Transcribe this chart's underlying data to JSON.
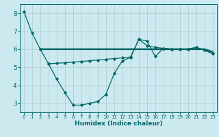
{
  "xlabel": "Humidex (Indice chaleur)",
  "bg_color": "#cce9f0",
  "grid_color": "#aacccc",
  "line_color": "#006666",
  "xlim": [
    -0.5,
    23.5
  ],
  "ylim": [
    2.5,
    8.5
  ],
  "yticks": [
    3,
    4,
    5,
    6,
    7,
    8
  ],
  "xticks": [
    0,
    1,
    2,
    3,
    4,
    5,
    6,
    7,
    8,
    9,
    10,
    11,
    12,
    13,
    14,
    15,
    16,
    17,
    18,
    19,
    20,
    21,
    22,
    23
  ],
  "line1_x": [
    0,
    1,
    2,
    3,
    4,
    5,
    6,
    7,
    8,
    9,
    10,
    11,
    12,
    13,
    14,
    15,
    16,
    17,
    18,
    19,
    20,
    21,
    22,
    23
  ],
  "line1_y": [
    8.1,
    6.9,
    6.0,
    5.2,
    4.35,
    3.6,
    2.9,
    2.9,
    3.0,
    3.1,
    3.5,
    4.65,
    5.35,
    5.55,
    6.55,
    6.45,
    5.6,
    6.05,
    6.0,
    6.0,
    6.0,
    6.1,
    5.95,
    5.75
  ],
  "line2_x": [
    2,
    3,
    4,
    5,
    6,
    7,
    8,
    9,
    10,
    11,
    12,
    13,
    14,
    15,
    16,
    17,
    18,
    19,
    20,
    21,
    22,
    23
  ],
  "line2_y": [
    6.0,
    6.0,
    6.0,
    6.0,
    6.0,
    6.0,
    6.0,
    6.0,
    6.0,
    6.0,
    6.0,
    6.0,
    6.0,
    6.0,
    6.0,
    6.0,
    6.0,
    6.0,
    6.0,
    6.0,
    6.0,
    5.85
  ],
  "line3_x": [
    3,
    4,
    5,
    6,
    7,
    8,
    9,
    10,
    11,
    12,
    13,
    14,
    15,
    16,
    17,
    18,
    19,
    20,
    21,
    22,
    23
  ],
  "line3_y": [
    5.2,
    5.22,
    5.25,
    5.28,
    5.32,
    5.36,
    5.4,
    5.44,
    5.48,
    5.52,
    5.56,
    6.55,
    6.2,
    6.1,
    6.05,
    6.0,
    6.0,
    6.0,
    6.1,
    5.95,
    5.75
  ]
}
